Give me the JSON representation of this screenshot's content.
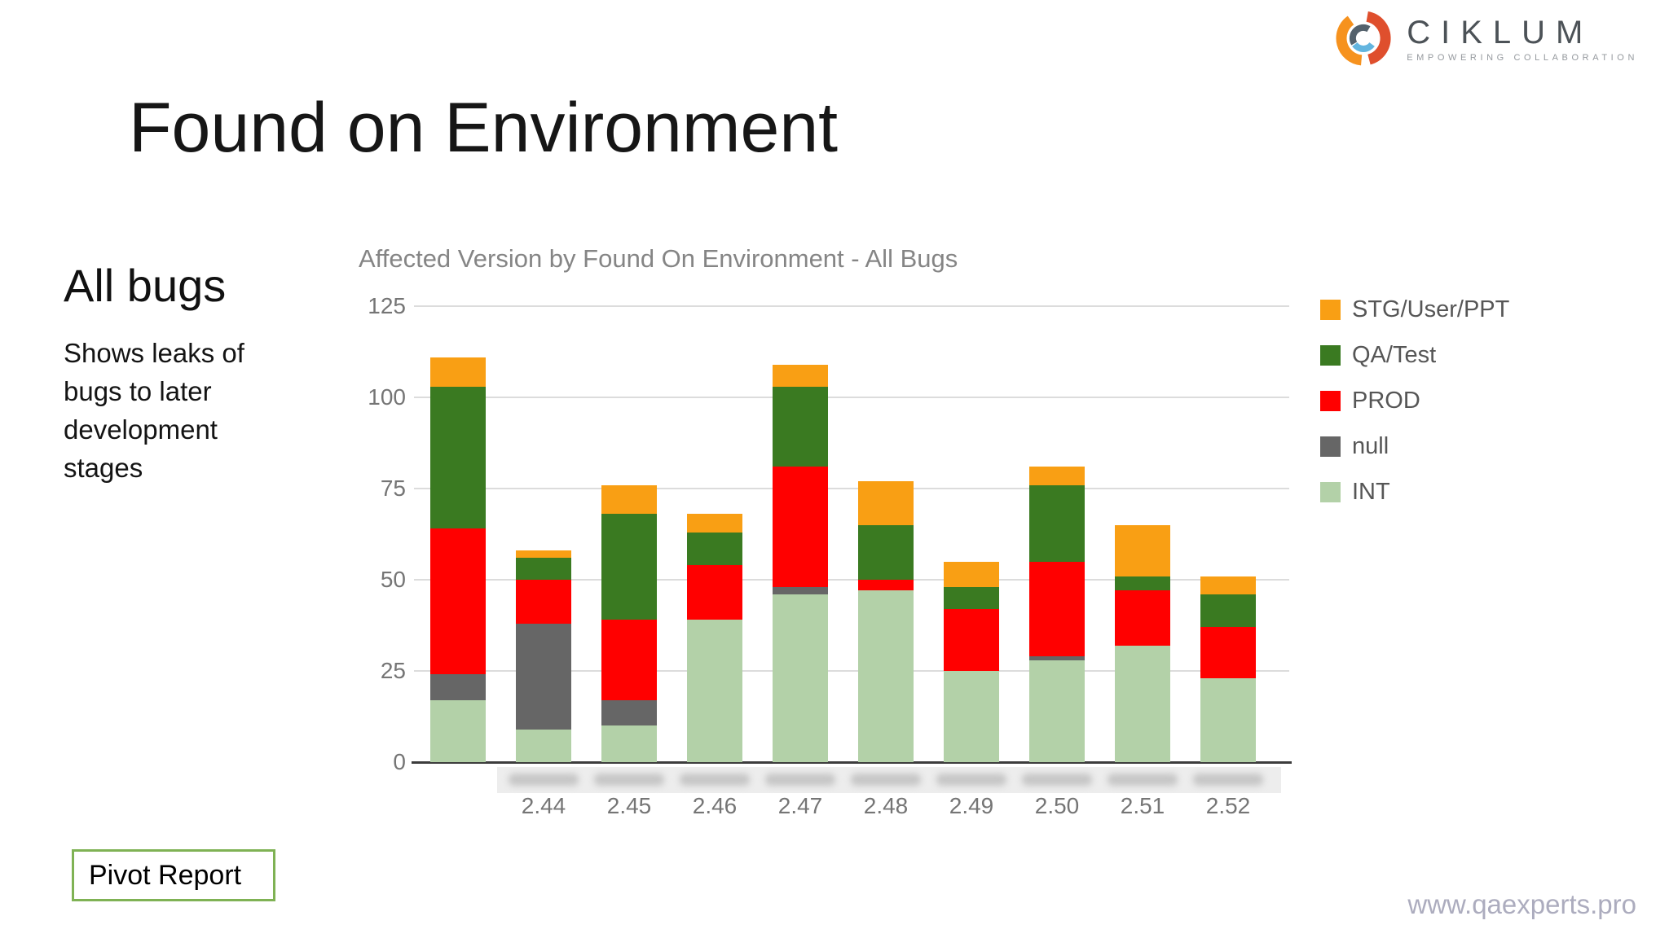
{
  "slide": {
    "title": "Found on Environment",
    "subtitle": "All bugs",
    "description": "Shows leaks of bugs to later development stages",
    "pivot_button_label": "Pivot Report",
    "footer_url": "www.qaexperts.pro"
  },
  "logo": {
    "text": "CIKLUM",
    "tagline": "EMPOWERING COLLABORATION"
  },
  "chart_data": {
    "type": "bar",
    "stacked": true,
    "title": "Affected Version by Found On Environment - All Bugs",
    "categories": [
      "",
      "2.44",
      "2.45",
      "2.46",
      "2.47",
      "2.48",
      "2.49",
      "2.50",
      "2.51",
      "2.52"
    ],
    "category_names_blurred": true,
    "series": [
      {
        "name": "INT",
        "color": "#b3d1a8",
        "values": [
          17,
          9,
          10,
          39,
          46,
          47,
          25,
          28,
          32,
          23
        ]
      },
      {
        "name": "null",
        "color": "#666666",
        "values": [
          7,
          29,
          7,
          0,
          2,
          0,
          0,
          1,
          0,
          0
        ]
      },
      {
        "name": "PROD",
        "color": "#ff0000",
        "values": [
          40,
          12,
          22,
          15,
          33,
          3,
          17,
          26,
          15,
          14
        ]
      },
      {
        "name": "QA/Test",
        "color": "#3a7a21",
        "values": [
          39,
          6,
          29,
          9,
          22,
          15,
          6,
          21,
          4,
          9
        ]
      },
      {
        "name": "STG/User/PPT",
        "color": "#f99f14",
        "values": [
          8,
          2,
          8,
          5,
          6,
          12,
          7,
          5,
          14,
          5
        ]
      }
    ],
    "totals": [
      111,
      58,
      76,
      68,
      109,
      77,
      55,
      81,
      65,
      51
    ],
    "legend": [
      {
        "label": "STG/User/PPT",
        "color": "#f99f14"
      },
      {
        "label": "QA/Test",
        "color": "#3a7a21"
      },
      {
        "label": "PROD",
        "color": "#ff0000"
      },
      {
        "label": "null",
        "color": "#666666"
      },
      {
        "label": "INT",
        "color": "#b3d1a8"
      }
    ],
    "legend_position": "right",
    "y_ticks": [
      0,
      25,
      50,
      75,
      100,
      125
    ],
    "ylim": [
      0,
      125
    ],
    "grid": true,
    "xlabel": "",
    "ylabel": ""
  },
  "colors": {
    "grid": "#dcdcdc",
    "axis": "#3c3c3c",
    "tick_text": "#757575",
    "chart_title": "#858585",
    "pivot_border": "#7fb254",
    "footer_text": "#acacbe"
  }
}
